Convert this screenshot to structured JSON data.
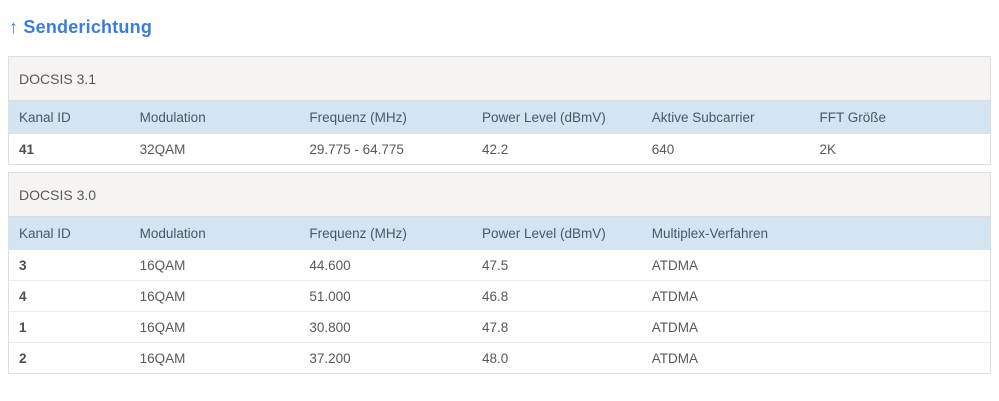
{
  "page": {
    "title": "↑ Senderichtung"
  },
  "colors": {
    "title_accent": "#3b7dd8",
    "table_header_bg": "#d3e5f1",
    "table_header_text": "#44596b",
    "section_header_bg": "#f5f4f2",
    "body_text": "#56585a"
  },
  "tables": [
    {
      "section": "DOCSIS 3.1",
      "columns": [
        "Kanal ID",
        "Modulation",
        "Frequenz (MHz)",
        "Power Level (dBmV)",
        "Aktive Subcarrier",
        "FFT Größe"
      ],
      "rows": [
        [
          "41",
          "32QAM",
          "29.775 - 64.775",
          "42.2",
          "640",
          "2K"
        ]
      ]
    },
    {
      "section": "DOCSIS 3.0",
      "columns": [
        "Kanal ID",
        "Modulation",
        "Frequenz (MHz)",
        "Power Level (dBmV)",
        "Multiplex-Verfahren"
      ],
      "rows": [
        [
          "3",
          "16QAM",
          "44.600",
          "47.5",
          "ATDMA"
        ],
        [
          "4",
          "16QAM",
          "51.000",
          "46.8",
          "ATDMA"
        ],
        [
          "1",
          "16QAM",
          "30.800",
          "47.8",
          "ATDMA"
        ],
        [
          "2",
          "16QAM",
          "37.200",
          "48.0",
          "ATDMA"
        ]
      ]
    }
  ]
}
